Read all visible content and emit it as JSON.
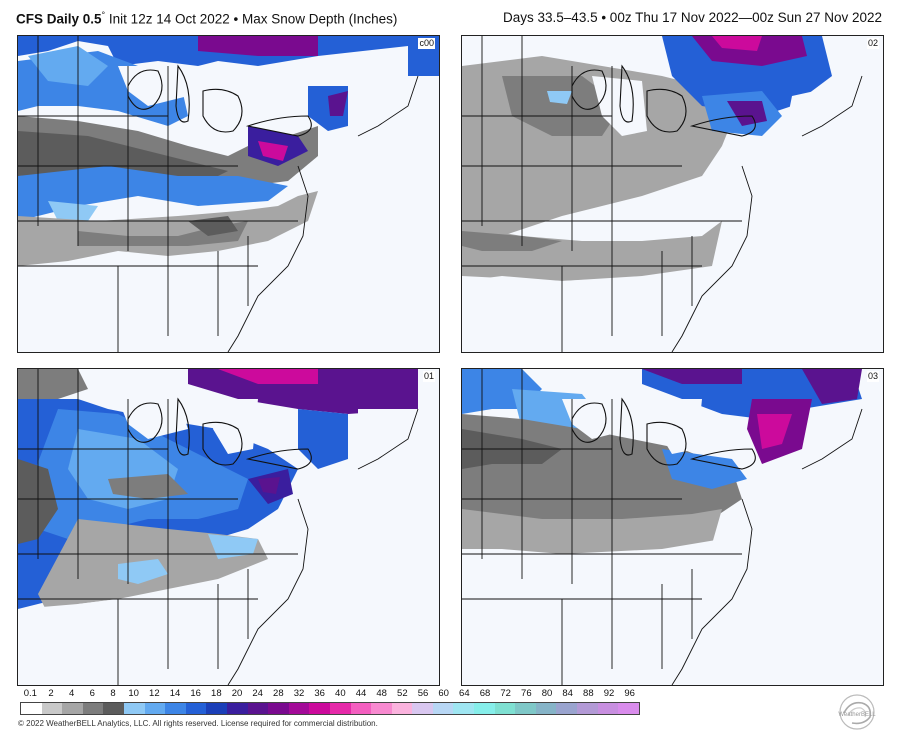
{
  "header": {
    "model": "CFS Daily 0.5",
    "degree": "°",
    "init": "Init 12z 14 Oct 2022",
    "separator": "•",
    "product": "Max Snow Depth (Inches)",
    "valid": "Days 33.5–43.5 • 00z Thu 17 Nov 2022—00z Sun 27 Nov 2022"
  },
  "panels": [
    {
      "id": "c00",
      "label": "c00"
    },
    {
      "id": "02",
      "label": "02"
    },
    {
      "id": "01",
      "label": "01"
    },
    {
      "id": "03",
      "label": "03"
    }
  ],
  "colorbar": {
    "ticks": [
      "0.1",
      "2",
      "4",
      "6",
      "8",
      "10",
      "12",
      "14",
      "16",
      "18",
      "20",
      "24",
      "28",
      "32",
      "36",
      "40",
      "44",
      "48",
      "52",
      "56",
      "60",
      "64",
      "68",
      "72",
      "76",
      "80",
      "84",
      "88",
      "92",
      "96"
    ],
    "colors": [
      "#ffffff",
      "#c9c9c9",
      "#a6a6a6",
      "#7d7d7d",
      "#5c5c5c",
      "#8fc9f5",
      "#63aaf0",
      "#3d85e6",
      "#2460d6",
      "#1b3fb8",
      "#3a1e9e",
      "#5a138f",
      "#7a0a8f",
      "#a30a98",
      "#cc0a9c",
      "#e62aa9",
      "#f45fc0",
      "#f88ad0",
      "#fbb3de",
      "#d9c7f0",
      "#b8d7f5",
      "#9fe6f2",
      "#86eeea",
      "#7fe0d2",
      "#7fc8c8",
      "#86b4c8",
      "#9aa4cf",
      "#b39ad6",
      "#c88fe0",
      "#d98cec"
    ]
  },
  "footer": "© 2022 WeatherBELL Analytics, LLC. All rights reserved. License required for commercial distribution.",
  "logo_text": "WeatherBELL"
}
